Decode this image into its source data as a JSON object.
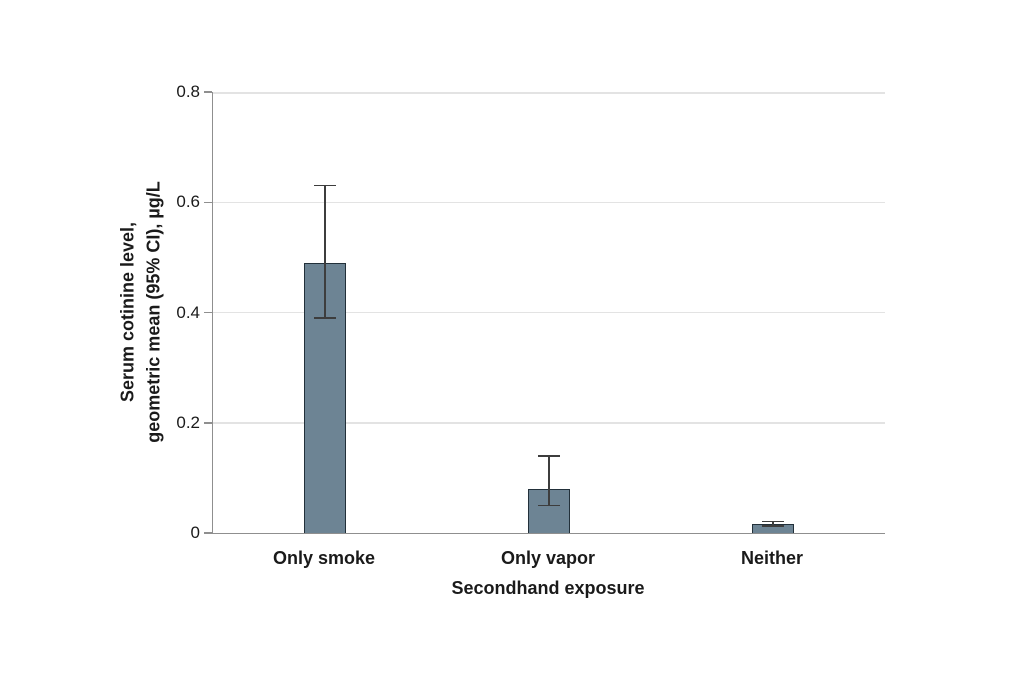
{
  "chart_data": {
    "type": "bar",
    "categories": [
      "Only smoke",
      "Only vapor",
      "Neither"
    ],
    "values": [
      0.49,
      0.08,
      0.016
    ],
    "error_bars": {
      "ci_low": [
        0.39,
        0.05,
        0.013
      ],
      "ci_high": [
        0.63,
        0.14,
        0.021
      ]
    },
    "title": "",
    "xlabel": "Secondhand exposure",
    "ylabel_lines": [
      "Serum cotinine level,",
      "geometric mean (95% CI), µg/L"
    ],
    "ylabel": "Serum cotinine level, geometric mean (95% CI), µg/L",
    "ylim": [
      0,
      0.8
    ],
    "yticks": [
      0,
      0.2,
      0.4,
      0.6,
      0.8
    ],
    "ytick_labels": [
      "0",
      "0.2",
      "0.4",
      "0.6",
      "0.8"
    ],
    "grid": "horizontal",
    "legend": "none",
    "colors": {
      "bar_fill": "#6d8494",
      "bar_border": "#22303a",
      "error_bar": "#3d3d3d",
      "axis_line": "#8f8f8f",
      "gridline": "#e3e3e3",
      "text": "#1a1a1a",
      "background": "#ffffff"
    }
  }
}
